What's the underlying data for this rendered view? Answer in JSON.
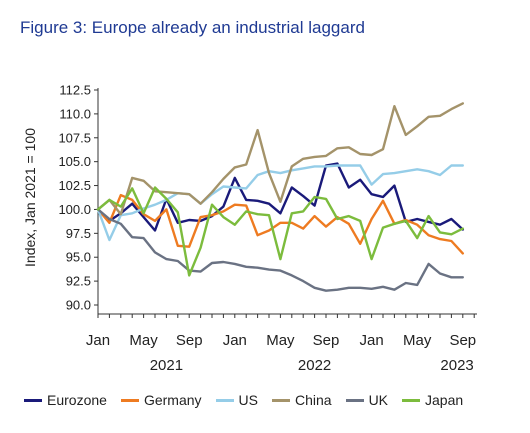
{
  "chart_data": {
    "type": "line",
    "title": "Figure 3: Europe already an industrial laggard",
    "ylabel": "Index, Jan 2021 = 100",
    "xlabel": "",
    "ylim": [
      90.0,
      112.5
    ],
    "yticks": [
      "112.5",
      "110.0",
      "107.5",
      "105.0",
      "102.5",
      "100.0",
      "97.5",
      "95.0",
      "92.5",
      "90.0"
    ],
    "xticks": [
      {
        "m": 0,
        "label": "Jan"
      },
      {
        "m": 4,
        "label": "May"
      },
      {
        "m": 8,
        "label": "Sep"
      },
      {
        "m": 12,
        "label": "Jan"
      },
      {
        "m": 16,
        "label": "May"
      },
      {
        "m": 20,
        "label": "Sep"
      },
      {
        "m": 24,
        "label": "Jan"
      },
      {
        "m": 28,
        "label": "May"
      },
      {
        "m": 32,
        "label": "Sep"
      }
    ],
    "years": [
      {
        "m": 6,
        "label": "2021"
      },
      {
        "m": 19,
        "label": "2022"
      },
      {
        "m": 31.5,
        "label": "2023"
      }
    ],
    "x_start": "Jan 2021",
    "grid": false,
    "legend": "bottom",
    "series": [
      {
        "name": "Eurozone",
        "color": "#1a1a7a",
        "values": [
          100.0,
          98.8,
          99.6,
          100.6,
          99.2,
          97.8,
          101.1,
          98.6,
          98.9,
          98.8,
          99.3,
          100.3,
          103.3,
          101.0,
          100.9,
          100.6,
          99.6,
          102.3,
          101.4,
          100.4,
          104.6,
          104.8,
          102.3,
          103.1,
          101.6,
          101.3,
          102.5,
          98.7,
          99.0,
          98.7,
          98.4,
          99.0,
          97.9
        ]
      },
      {
        "name": "Germany",
        "color": "#ee7b21",
        "values": [
          100.0,
          98.6,
          101.5,
          101.0,
          99.5,
          98.8,
          100.0,
          96.2,
          96.1,
          99.2,
          99.4,
          99.8,
          100.5,
          100.4,
          97.3,
          97.8,
          98.6,
          98.6,
          98.0,
          99.3,
          98.2,
          99.2,
          98.5,
          96.4,
          99.0,
          100.9,
          98.5,
          98.9,
          98.4,
          97.3,
          96.9,
          96.7,
          95.4
        ]
      },
      {
        "name": "US",
        "color": "#95cde8",
        "values": [
          100.0,
          96.8,
          99.4,
          99.6,
          100.1,
          100.5,
          101.0,
          101.7,
          101.6,
          100.6,
          101.6,
          102.4,
          102.3,
          102.2,
          103.6,
          104.0,
          103.8,
          104.1,
          104.3,
          104.5,
          104.5,
          104.6,
          104.6,
          104.6,
          102.6,
          103.7,
          103.8,
          104.0,
          104.2,
          104.0,
          103.6,
          104.6,
          104.6
        ]
      },
      {
        "name": "China",
        "color": "#a4936a",
        "values": [
          100.0,
          101.0,
          99.5,
          103.3,
          103.0,
          101.9,
          101.8,
          101.7,
          101.6,
          100.6,
          101.8,
          103.2,
          104.4,
          104.7,
          108.3,
          103.8,
          100.8,
          104.5,
          105.3,
          105.5,
          105.6,
          106.4,
          106.5,
          105.8,
          105.7,
          106.3,
          110.8,
          107.8,
          108.7,
          109.7,
          109.8,
          110.5,
          111.1
        ]
      },
      {
        "name": "UK",
        "color": "#6a7283",
        "values": [
          100.0,
          99.0,
          98.5,
          97.1,
          97.0,
          95.5,
          94.8,
          94.6,
          93.6,
          93.5,
          94.4,
          94.5,
          94.3,
          94.0,
          93.9,
          93.7,
          93.6,
          93.1,
          92.5,
          91.8,
          91.5,
          91.6,
          91.8,
          91.8,
          91.7,
          91.9,
          91.6,
          92.3,
          92.1,
          94.3,
          93.3,
          92.9,
          92.9
        ]
      },
      {
        "name": "Japan",
        "color": "#7cbc3d",
        "values": [
          100.0,
          101.0,
          100.3,
          102.2,
          99.6,
          102.3,
          101.1,
          99.7,
          93.1,
          96.0,
          100.5,
          99.2,
          98.4,
          99.8,
          99.5,
          99.4,
          94.8,
          99.6,
          99.8,
          101.3,
          101.1,
          99.0,
          99.3,
          98.8,
          94.8,
          98.1,
          98.5,
          98.8,
          97.0,
          99.3,
          97.6,
          97.4,
          98.0
        ]
      }
    ]
  }
}
